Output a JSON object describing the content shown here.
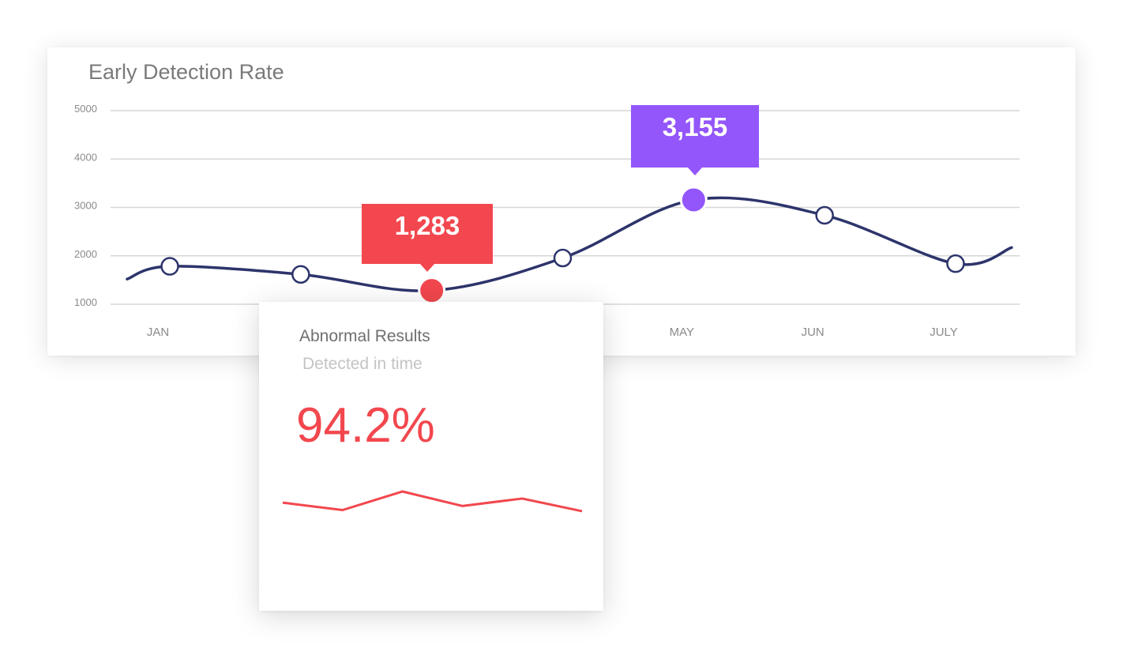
{
  "colors": {
    "line": "#2d346b",
    "grid": "#d6d6d6",
    "axis_text": "#8a8a8a",
    "highlight_low": "#f2474e",
    "highlight_high": "#9356fb",
    "sparkline": "#f2474e"
  },
  "chart_data": [
    {
      "type": "line",
      "title": "Early Detection Rate",
      "x_tick_labels": [
        "JAN",
        "",
        "",
        "",
        "MAY",
        "JUN",
        "JULY"
      ],
      "y_tick_labels": [
        "5000",
        "4000",
        "3000",
        "2000",
        "1000"
      ],
      "ylim": [
        1000,
        5000
      ],
      "grid": true,
      "smooth": true,
      "points": [
        1783,
        1616,
        1283,
        1955,
        3155,
        2837,
        1838
      ],
      "line_start": 1520,
      "line_end": 2170,
      "highlights": [
        {
          "index": 2,
          "label": "1,283",
          "color": "#f2474e"
        },
        {
          "index": 4,
          "label": "3,155",
          "color": "#9356fb"
        }
      ]
    },
    {
      "type": "line",
      "title": "Abnormal Results",
      "subtitle": "Detected in time",
      "value": "94.2%",
      "values": [
        0.7,
        0.5,
        1.0,
        0.61,
        0.81,
        0.47
      ]
    }
  ]
}
